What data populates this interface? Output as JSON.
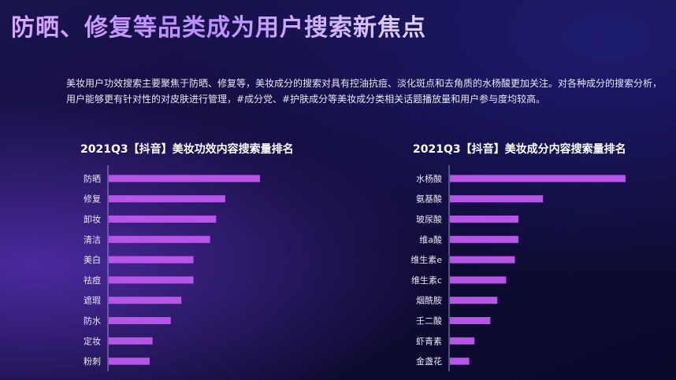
{
  "page": {
    "title": "防晒、修复等品类成为用户搜索新焦点",
    "description": "美妆用户功效搜索主要聚焦于防晒、修复等，美妆成分的搜索对具有控油抗痘、淡化斑点和去角质的水杨酸更加关注。对各种成分的搜索分析，用户能够更有针对性的对皮肤进行管理，#成分党、#护肤成分等美妆成分类相关话题播放量和用户参与度均较高。"
  },
  "colors": {
    "bar": "#b655e8",
    "axis": "#9a8fd6"
  },
  "chart_data": [
    {
      "type": "bar",
      "orientation": "horizontal",
      "title": "2021Q3【抖音】美妆功效内容搜索量排名",
      "categories": [
        "防晒",
        "修复",
        "卸妆",
        "清洁",
        "美白",
        "祛痘",
        "遮瑕",
        "防水",
        "定妆",
        "粉刺"
      ],
      "values": [
        100,
        77,
        71,
        67,
        56,
        56,
        48,
        41,
        29,
        27
      ],
      "xlim": [
        0,
        100
      ]
    },
    {
      "type": "bar",
      "orientation": "horizontal",
      "title": "2021Q3【抖音】美妆成分内容搜索量排名",
      "categories": [
        "水杨酸",
        "氨基酸",
        "玻尿酸",
        "维a酸",
        "维生素e",
        "维生素c",
        "烟酰胺",
        "壬二酸",
        "虾青素",
        "金盏花"
      ],
      "values": [
        100,
        53,
        39,
        39,
        37,
        32,
        27,
        23,
        14,
        11
      ],
      "xlim": [
        0,
        100
      ]
    }
  ]
}
